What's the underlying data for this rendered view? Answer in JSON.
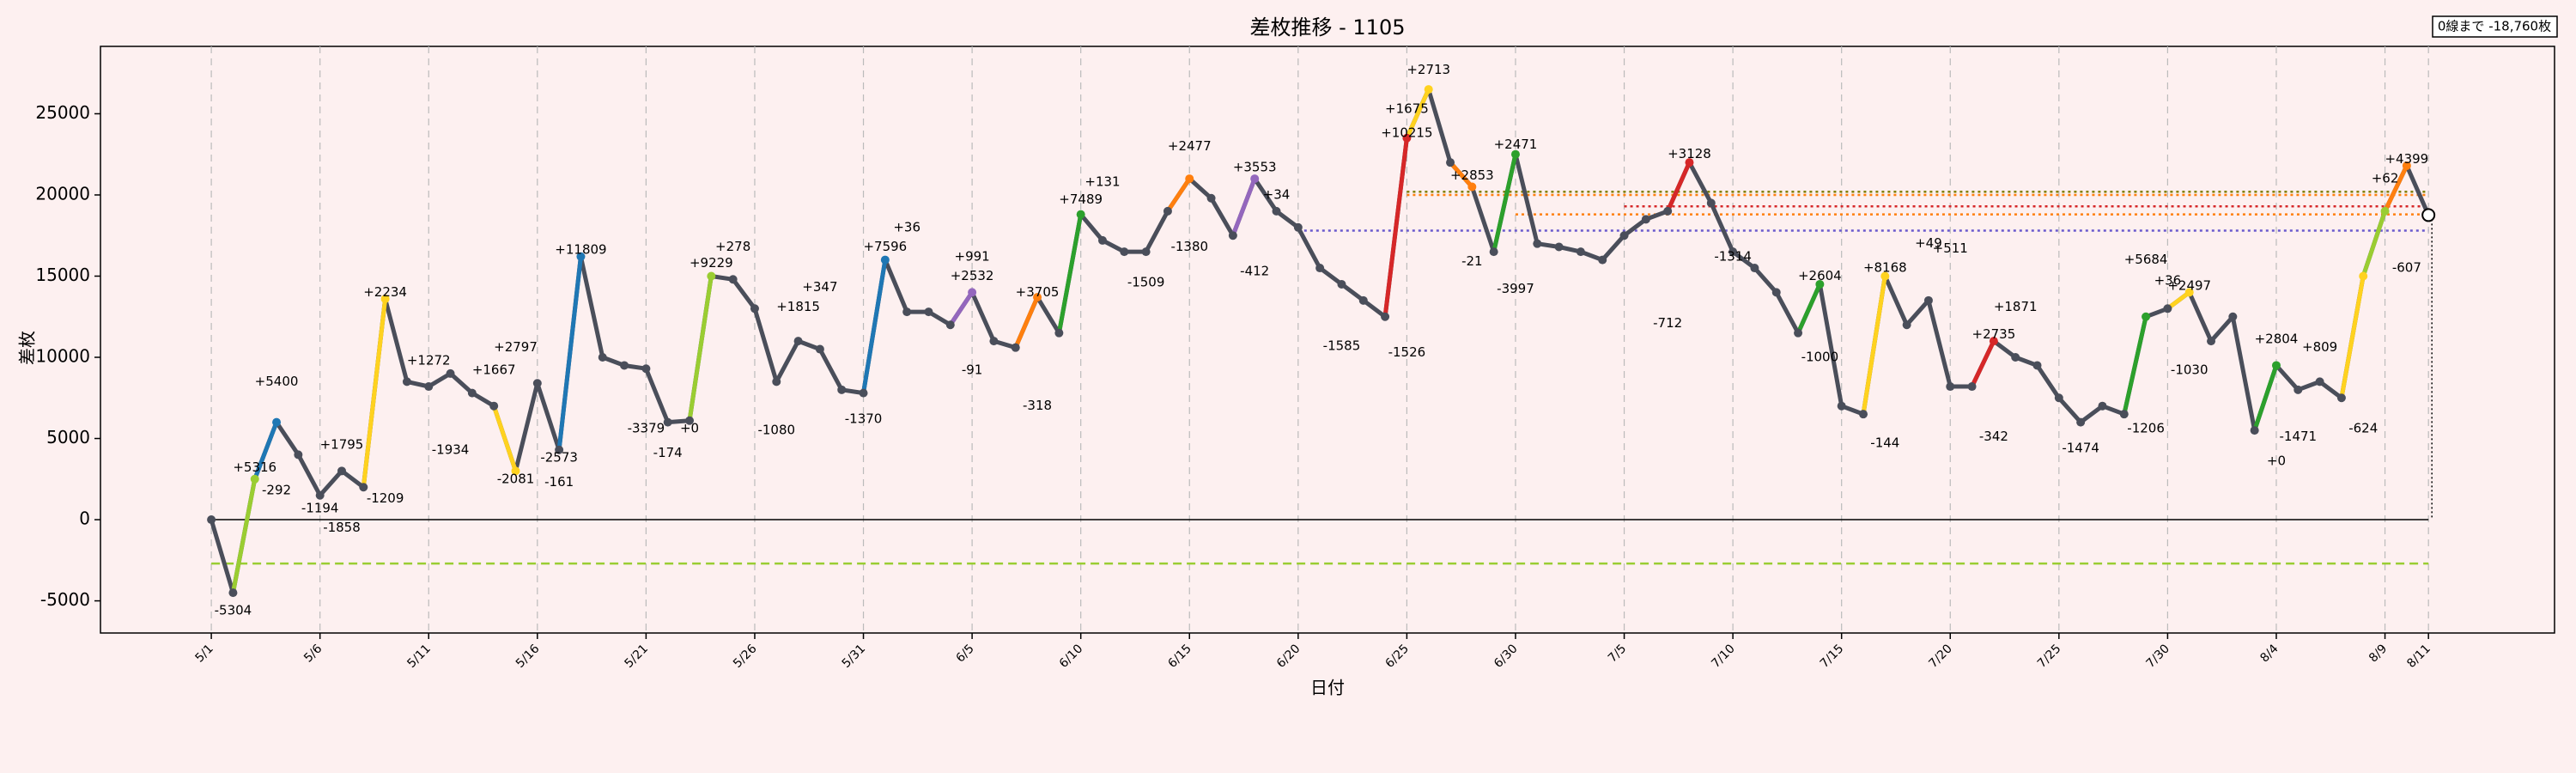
{
  "chart_data": {
    "type": "line",
    "title": "差枚推移 - 1105",
    "xlabel": "日付",
    "ylabel": "差枚",
    "status_box": "0線まで -18,760枚",
    "categories": [
      "5/1",
      null,
      null,
      null,
      null,
      "5/6",
      null,
      null,
      null,
      null,
      "5/11",
      null,
      null,
      null,
      null,
      "5/16",
      null,
      null,
      null,
      null,
      "5/21",
      null,
      null,
      null,
      null,
      "5/26",
      null,
      null,
      null,
      null,
      "5/31",
      null,
      null,
      null,
      null,
      "6/5",
      null,
      null,
      null,
      null,
      "6/10",
      null,
      null,
      null,
      null,
      "6/15",
      null,
      null,
      null,
      null,
      "6/20",
      null,
      null,
      null,
      null,
      "6/25",
      null,
      null,
      null,
      null,
      "6/30",
      null,
      null,
      null,
      null,
      "7/5",
      null,
      null,
      null,
      null,
      "7/10",
      null,
      null,
      null,
      null,
      "7/15",
      null,
      null,
      null,
      null,
      "7/20",
      null,
      null,
      null,
      null,
      "7/25",
      null,
      null,
      null,
      null,
      "7/30",
      null,
      null,
      null,
      null,
      "8/4",
      null,
      null,
      null,
      null,
      "8/9",
      null,
      "8/11"
    ],
    "weekend_ticks": [
      "6/5",
      "6/15",
      "6/25",
      "7/5",
      "7/15",
      "7/25"
    ],
    "weekend_color": "#e8141c",
    "color": "#4a4e5a",
    "values": [
      0,
      -4500,
      2500,
      6000,
      4000,
      1500,
      3000,
      2000,
      13600,
      8500,
      8200,
      9000,
      7800,
      7000,
      3000,
      8400,
      4300,
      16200,
      10000,
      9500,
      9300,
      6000,
      6100,
      15000,
      14800,
      13000,
      8500,
      11000,
      10500,
      8000,
      7800,
      16000,
      12800,
      12800,
      12000,
      14000,
      11000,
      10600,
      13700,
      11500,
      18800,
      17200,
      16500,
      16500,
      19000,
      21000,
      19800,
      17500,
      21000,
      19000,
      18000,
      15500,
      14500,
      13500,
      12500,
      23500,
      26500,
      22000,
      20500,
      16500,
      22500,
      17000,
      16800,
      16500,
      16000,
      17500,
      18500,
      19000,
      22000,
      19500,
      16500,
      15500,
      14000,
      11500,
      14500,
      7000,
      6500,
      15000,
      12000,
      13500,
      8200,
      8200,
      11000,
      10000,
      9500,
      7500,
      6000,
      7000,
      6500,
      12500,
      13000,
      14000,
      11000,
      12500,
      5500,
      9500,
      8000,
      8500,
      7500,
      15000,
      19000,
      21800,
      18760
    ],
    "segment_colors": [
      null,
      null,
      "#9acd32",
      "#1f77b4",
      null,
      null,
      null,
      null,
      "#ffd21f",
      null,
      null,
      null,
      null,
      null,
      "#ffd21f",
      null,
      null,
      "#1f77b4",
      null,
      null,
      null,
      null,
      null,
      "#9acd32",
      null,
      null,
      null,
      null,
      null,
      null,
      null,
      "#1f77b4",
      null,
      null,
      null,
      "#9467bd",
      null,
      null,
      "#ff7f0e",
      null,
      "#2ca02c",
      null,
      null,
      null,
      null,
      "#ff7f0e",
      null,
      null,
      "#9467bd",
      null,
      null,
      null,
      null,
      null,
      null,
      "#d62728",
      "#ffd21f",
      null,
      "#ff7f0e",
      null,
      "#2ca02c",
      null,
      null,
      null,
      null,
      null,
      null,
      null,
      "#d62728",
      null,
      null,
      null,
      null,
      null,
      "#2ca02c",
      null,
      null,
      "#ffd21f",
      null,
      null,
      null,
      null,
      "#d62728",
      null,
      null,
      null,
      null,
      null,
      null,
      "#2ca02c",
      null,
      "#ffd21f",
      null,
      null,
      null,
      "#2ca02c",
      null,
      null,
      null,
      "#ffd21f",
      "#9acd32",
      "#ff7f0e",
      null
    ],
    "ylim": [
      -6980,
      29150
    ],
    "yticks": [
      -5000,
      0,
      5000,
      10000,
      15000,
      20000,
      25000
    ],
    "xgrid": true,
    "zero_line": true,
    "ref_lines": [
      {
        "y": -2700,
        "color": "#9acd32",
        "dash": "dashed",
        "from": "5/1"
      },
      {
        "y": 20200,
        "color": "#808000",
        "dash": "dotted",
        "from": "6/25"
      },
      {
        "y": 20000,
        "color": "#ff7f0e",
        "dash": "dotted",
        "from": "6/25"
      },
      {
        "y": 19300,
        "color": "#d62728",
        "dash": "dotted",
        "from": "7/5"
      },
      {
        "y": 18800,
        "color": "#ff7f0e",
        "dash": "dotted",
        "from": "6/30"
      },
      {
        "y": 17800,
        "color": "#6a5acd",
        "dash": "dotted",
        "from": "6/20"
      }
    ],
    "annotations": [
      {
        "text": "-5304",
        "index": 1,
        "y": -5600,
        "color": "#444"
      },
      {
        "text": "+5316",
        "index": 2,
        "y": 3200,
        "color": "#9acd32"
      },
      {
        "text": "+5400",
        "index": 3,
        "y": 8500,
        "color": "#1f77b4"
      },
      {
        "text": "-292",
        "index": 3,
        "y": 1800,
        "color": "#1f77b4"
      },
      {
        "text": "+1795",
        "index": 6,
        "y": 4600,
        "color": "#444"
      },
      {
        "text": "-1194",
        "index": 5,
        "y": 700,
        "color": "#444"
      },
      {
        "text": "-1858",
        "index": 6,
        "y": -500,
        "color": "#444"
      },
      {
        "text": "-1209",
        "index": 8,
        "y": 1300,
        "color": "#ffc000"
      },
      {
        "text": "+2234",
        "index": 8,
        "y": 14000,
        "color": "#444"
      },
      {
        "text": "-1934",
        "index": 11,
        "y": 4300,
        "color": "#444"
      },
      {
        "text": "+1272",
        "index": 10,
        "y": 9800,
        "color": "#444"
      },
      {
        "text": "+1667",
        "index": 13,
        "y": 9200,
        "color": "#444"
      },
      {
        "text": "+2797",
        "index": 14,
        "y": 10600,
        "color": "#ffc000"
      },
      {
        "text": "-2081",
        "index": 14,
        "y": 2500,
        "color": "#ffc000"
      },
      {
        "text": "+11809",
        "index": 17,
        "y": 16600,
        "color": "#1f77b4"
      },
      {
        "text": "-161",
        "index": 16,
        "y": 2300,
        "color": "#1f77b4"
      },
      {
        "text": "-2573",
        "index": 16,
        "y": 3800,
        "color": "#444"
      },
      {
        "text": "+9229",
        "index": 23,
        "y": 15800,
        "color": "#9acd32"
      },
      {
        "text": "+278",
        "index": 24,
        "y": 16800,
        "color": "#444"
      },
      {
        "text": "-174",
        "index": 21,
        "y": 4100,
        "color": "#444"
      },
      {
        "text": "-3379",
        "index": 20,
        "y": 5600,
        "color": "#444"
      },
      {
        "text": "+0",
        "index": 22,
        "y": 5600,
        "color": "#9acd32"
      },
      {
        "text": "+347",
        "index": 28,
        "y": 14300,
        "color": "#444"
      },
      {
        "text": "+1815",
        "index": 27,
        "y": 13100,
        "color": "#444"
      },
      {
        "text": "-1080",
        "index": 26,
        "y": 5500,
        "color": "#444"
      },
      {
        "text": "-1370",
        "index": 30,
        "y": 6200,
        "color": "#1f77b4"
      },
      {
        "text": "+7596",
        "index": 31,
        "y": 16800,
        "color": "#1f77b4"
      },
      {
        "text": "+36",
        "index": 32,
        "y": 18000,
        "color": "#444"
      },
      {
        "text": "+991",
        "index": 35,
        "y": 16200,
        "color": "#444"
      },
      {
        "text": "+2532",
        "index": 35,
        "y": 15000,
        "color": "#9467bd"
      },
      {
        "text": "-91",
        "index": 35,
        "y": 9200,
        "color": "#9467bd"
      },
      {
        "text": "-318",
        "index": 38,
        "y": 7000,
        "color": "#ff7f0e"
      },
      {
        "text": "+3705",
        "index": 38,
        "y": 14000,
        "color": "#ff7f0e"
      },
      {
        "text": "+7489",
        "index": 40,
        "y": 19700,
        "color": "#2ca02c"
      },
      {
        "text": "+131",
        "index": 41,
        "y": 20800,
        "color": "#444"
      },
      {
        "text": "-1509",
        "index": 43,
        "y": 14600,
        "color": "#444"
      },
      {
        "text": "+2477",
        "index": 45,
        "y": 23000,
        "color": "#ff7f0e"
      },
      {
        "text": "-1380",
        "index": 45,
        "y": 16800,
        "color": "#ff7f0e"
      },
      {
        "text": "+3553",
        "index": 48,
        "y": 21700,
        "color": "#9467bd"
      },
      {
        "text": "-412",
        "index": 48,
        "y": 15300,
        "color": "#9467bd"
      },
      {
        "text": "+34",
        "index": 49,
        "y": 20000,
        "color": "#444"
      },
      {
        "text": "-1585",
        "index": 52,
        "y": 10700,
        "color": "#444"
      },
      {
        "text": "+10215",
        "index": 55,
        "y": 23800,
        "color": "#d62728"
      },
      {
        "text": "-1526",
        "index": 55,
        "y": 10300,
        "color": "#d62728"
      },
      {
        "text": "+2713",
        "index": 56,
        "y": 27700,
        "color": "#ffc000"
      },
      {
        "text": "+1675",
        "index": 55,
        "y": 25300,
        "color": "#444"
      },
      {
        "text": "+2853",
        "index": 58,
        "y": 21200,
        "color": "#ff7f0e"
      },
      {
        "text": "-21",
        "index": 58,
        "y": 15900,
        "color": "#ff7f0e"
      },
      {
        "text": "+2471",
        "index": 60,
        "y": 23100,
        "color": "#2ca02c"
      },
      {
        "text": "-3997",
        "index": 60,
        "y": 14200,
        "color": "#2ca02c"
      },
      {
        "text": "-712",
        "index": 67,
        "y": 12100,
        "color": "#444"
      },
      {
        "text": "+3128",
        "index": 68,
        "y": 22500,
        "color": "#d62728"
      },
      {
        "text": "-1314",
        "index": 70,
        "y": 16200,
        "color": "#444"
      },
      {
        "text": "+2604",
        "index": 74,
        "y": 15000,
        "color": "#2ca02c"
      },
      {
        "text": "-1000",
        "index": 74,
        "y": 10000,
        "color": "#444"
      },
      {
        "text": "-144",
        "index": 77,
        "y": 4700,
        "color": "#ffc000"
      },
      {
        "text": "+8168",
        "index": 77,
        "y": 15500,
        "color": "#ffc000"
      },
      {
        "text": "+49",
        "index": 79,
        "y": 17000,
        "color": "#444"
      },
      {
        "text": "+511",
        "index": 80,
        "y": 16700,
        "color": "#444"
      },
      {
        "text": "+2735",
        "index": 82,
        "y": 11400,
        "color": "#d62728"
      },
      {
        "text": "-342",
        "index": 82,
        "y": 5100,
        "color": "#d62728"
      },
      {
        "text": "+1871",
        "index": 83,
        "y": 13100,
        "color": "#444"
      },
      {
        "text": "-1474",
        "index": 86,
        "y": 4400,
        "color": "#444"
      },
      {
        "text": "+5684",
        "index": 89,
        "y": 16000,
        "color": "#2ca02c"
      },
      {
        "text": "-1206",
        "index": 89,
        "y": 5600,
        "color": "#2ca02c"
      },
      {
        "text": "+36",
        "index": 90,
        "y": 14700,
        "color": "#444"
      },
      {
        "text": "+2497",
        "index": 91,
        "y": 14400,
        "color": "#ffc000"
      },
      {
        "text": "-1030",
        "index": 91,
        "y": 9200,
        "color": "#ffc000"
      },
      {
        "text": "+2804",
        "index": 95,
        "y": 11100,
        "color": "#2ca02c"
      },
      {
        "text": "+0",
        "index": 95,
        "y": 3600,
        "color": "#2ca02c"
      },
      {
        "text": "-1471",
        "index": 96,
        "y": 5100,
        "color": "#444"
      },
      {
        "text": "+809",
        "index": 97,
        "y": 10600,
        "color": "#444"
      },
      {
        "text": "-624",
        "index": 99,
        "y": 5600,
        "color": "#ffc000"
      },
      {
        "text": "+62",
        "index": 100,
        "y": 21000,
        "color": "#444"
      },
      {
        "text": "+4399",
        "index": 101,
        "y": 22200,
        "color": "#ff7f0e"
      },
      {
        "text": "-607",
        "index": 101,
        "y": 15500,
        "color": "#ff7f0e"
      }
    ]
  }
}
